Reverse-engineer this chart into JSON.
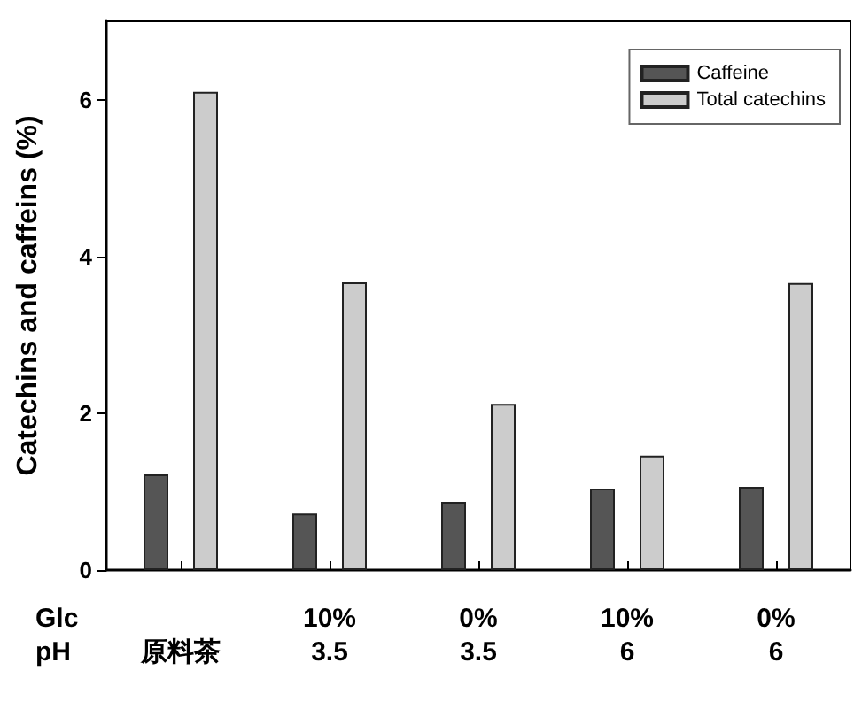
{
  "chart_data": {
    "type": "bar",
    "ylabel": "Catechins and caffeins (%)",
    "categories": [
      "原料茶",
      "10%\n3.5",
      "0%\n3.5",
      "10%\n6",
      "0%\n6"
    ],
    "series": [
      {
        "name": "Caffeine",
        "color": "#555555",
        "values": [
          1.22,
          0.72,
          0.87,
          1.04,
          1.06
        ]
      },
      {
        "name": "Total catechins",
        "color": "#cccccc",
        "values": [
          6.1,
          3.67,
          2.12,
          1.46,
          3.66
        ]
      }
    ],
    "ylim": [
      0,
      7
    ],
    "yticks": [
      0,
      2,
      4,
      6
    ],
    "grid": false,
    "legend": "top right",
    "annotations": [
      "Glc",
      "pH"
    ]
  }
}
